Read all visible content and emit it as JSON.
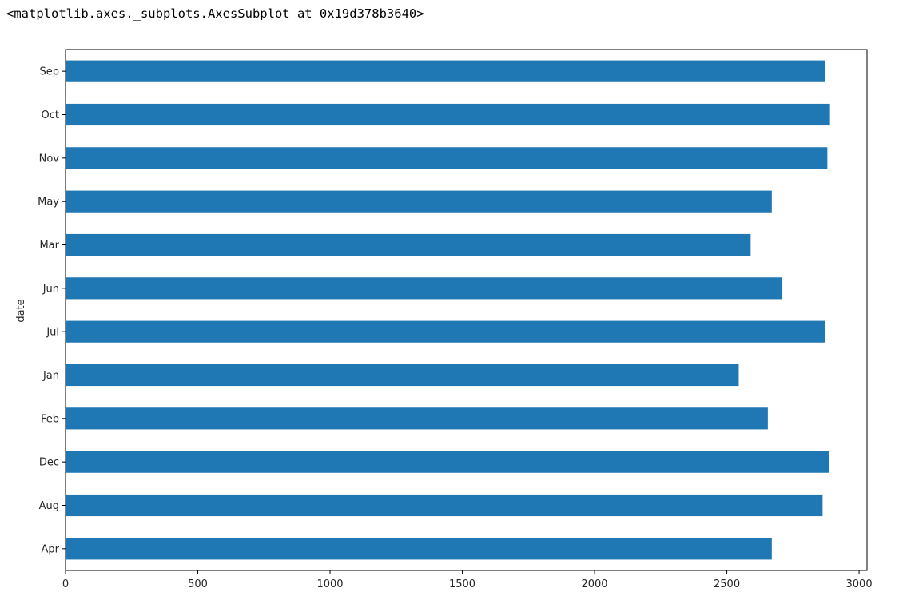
{
  "output": {
    "repr_text": "<matplotlib.axes._subplots.AxesSubplot at 0x19d378b3640>"
  },
  "chart_data": {
    "type": "bar",
    "orientation": "horizontal",
    "categories": [
      "Sep",
      "Oct",
      "Nov",
      "May",
      "Mar",
      "Jun",
      "Jul",
      "Jan",
      "Feb",
      "Dec",
      "Aug",
      "Apr"
    ],
    "values": [
      2870,
      2890,
      2880,
      2670,
      2590,
      2710,
      2870,
      2545,
      2655,
      2888,
      2862,
      2670
    ],
    "title": "",
    "xlabel": "",
    "ylabel": "date",
    "xlim": [
      0,
      3030
    ],
    "xticks": [
      0,
      500,
      1000,
      1500,
      2000,
      2500,
      3000
    ],
    "bar_color": "#1f77b4",
    "grid": false,
    "legend": "none"
  }
}
